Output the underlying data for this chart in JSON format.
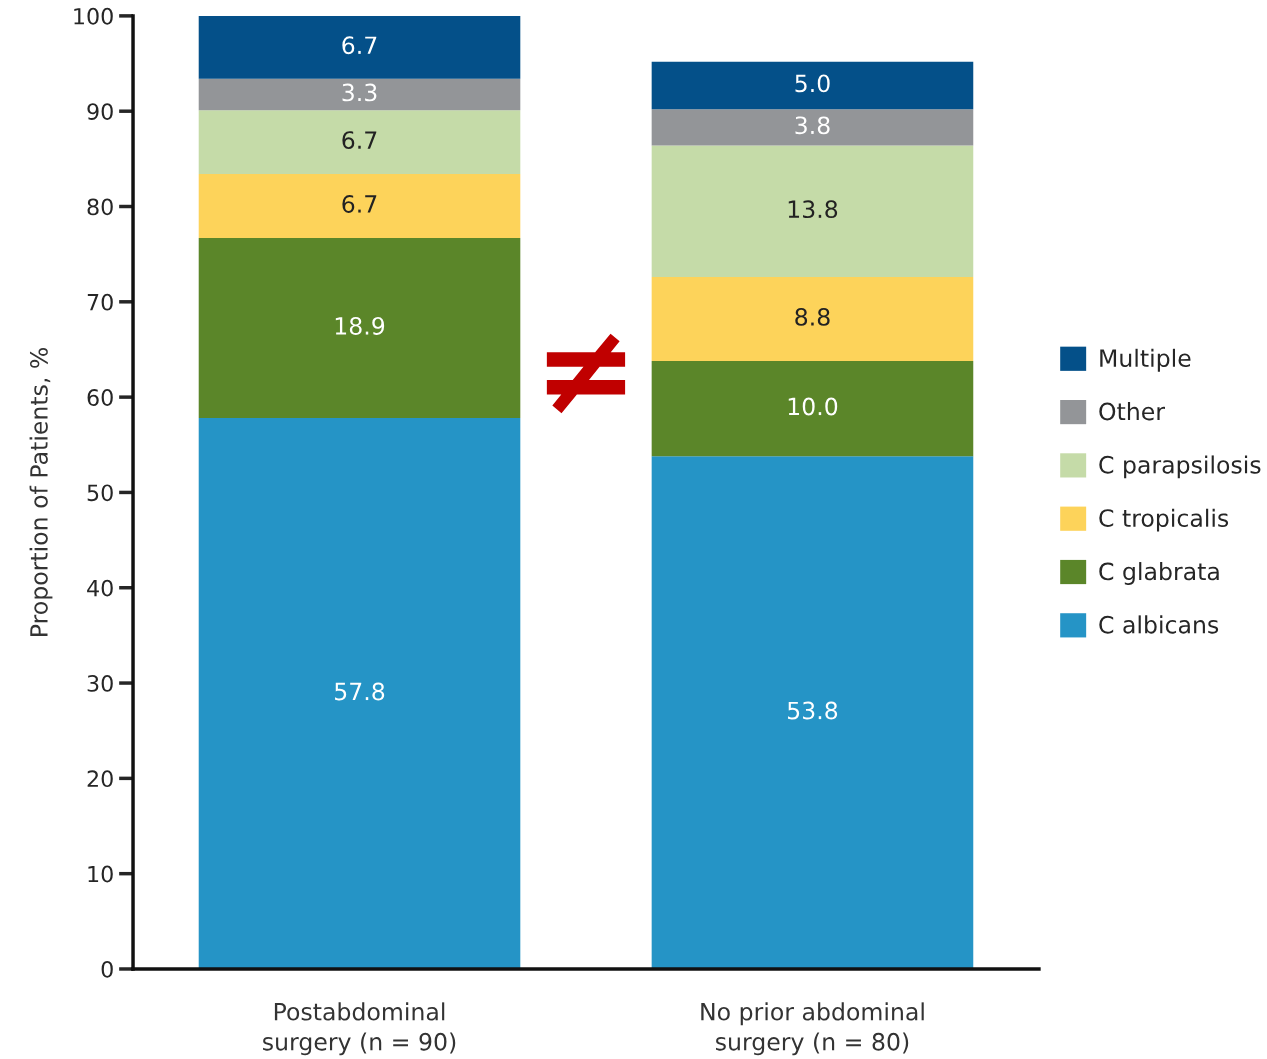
{
  "chart_data": {
    "type": "bar",
    "stacked": true,
    "ylabel": "Proportion of Patients, %",
    "categories": [
      "Postabdominal\nsurgery (n = 90)",
      "No prior abdominal\nsurgery (n = 80)"
    ],
    "series": [
      {
        "name": "C albicans",
        "color": "#2594c6",
        "values": [
          57.8,
          53.8
        ]
      },
      {
        "name": "C glabrata",
        "color": "#5b8629",
        "values": [
          18.9,
          10.0
        ]
      },
      {
        "name": "C tropicalis",
        "color": "#fdd35a",
        "values": [
          6.7,
          8.8
        ]
      },
      {
        "name": "C parapsilosis",
        "color": "#c5dba8",
        "values": [
          6.7,
          13.8
        ]
      },
      {
        "name": "Other",
        "color": "#939598",
        "values": [
          3.3,
          3.8
        ]
      },
      {
        "name": "Multiple",
        "color": "#045089",
        "values": [
          6.7,
          5.0
        ]
      }
    ],
    "value_labels": [
      [
        "57.8",
        "53.8"
      ],
      [
        "18.9",
        "10.0"
      ],
      [
        "6.7",
        "8.8"
      ],
      [
        "6.7",
        "13.8"
      ],
      [
        "3.3",
        "3.8"
      ],
      [
        "6.7",
        "5.0"
      ]
    ],
    "annotations": [
      "≠"
    ],
    "ylim": [
      0,
      100
    ],
    "yticks": [
      0,
      10,
      20,
      30,
      40,
      50,
      60,
      70,
      80,
      90,
      100
    ],
    "grid": false,
    "legend": "right"
  }
}
